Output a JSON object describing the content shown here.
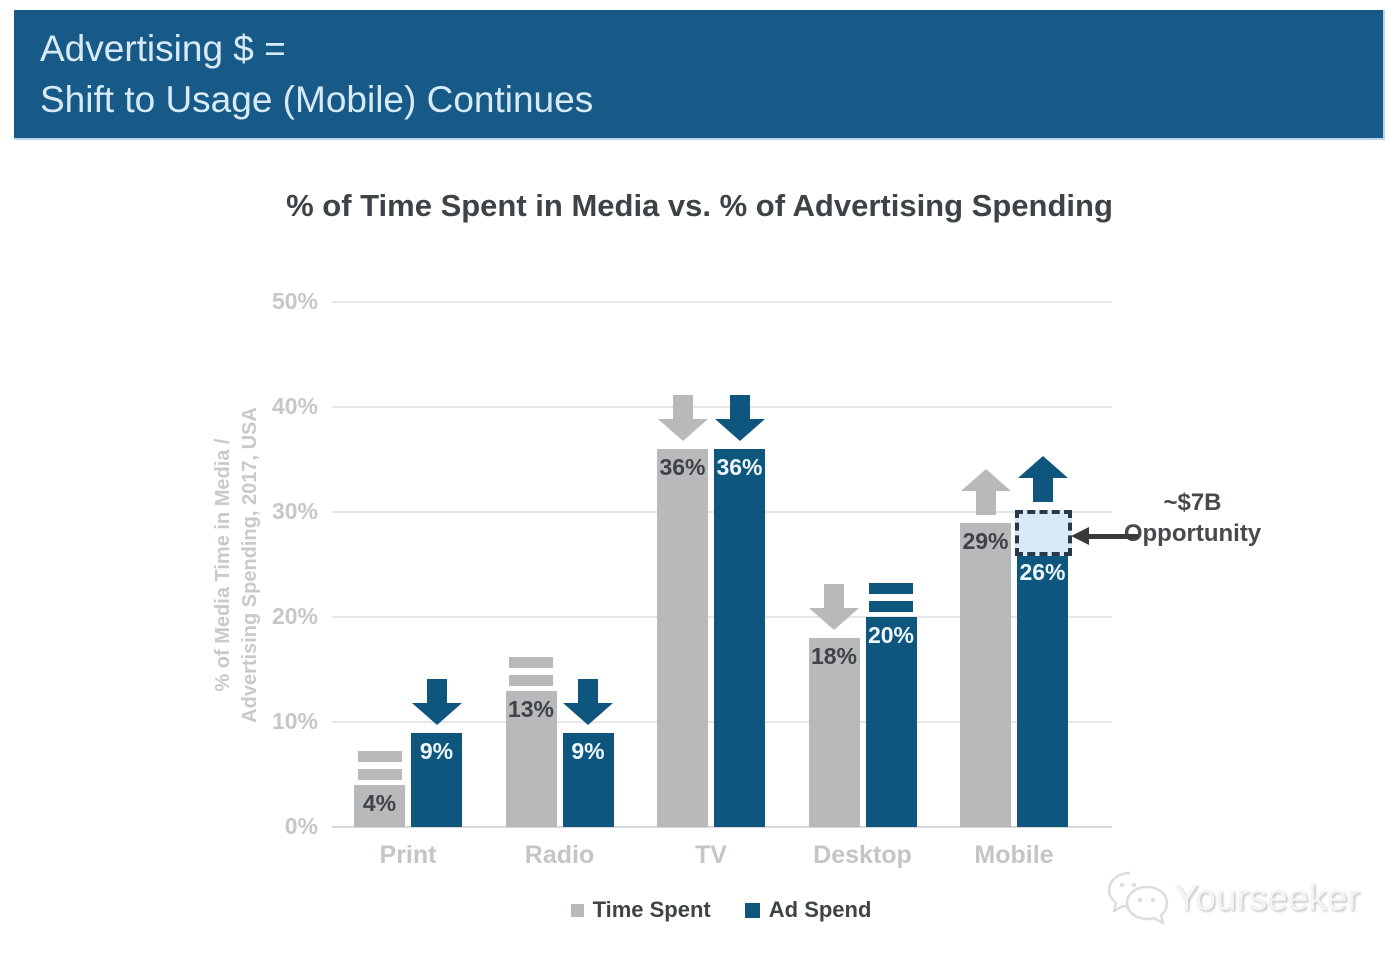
{
  "header": {
    "line1": "Advertising $ =",
    "line2": "Shift to Usage (Mobile) Continues"
  },
  "chart_data": {
    "type": "bar",
    "title": "% of Time Spent in Media vs. % of Advertising Spending",
    "ylabel_lines": [
      "% of Media Time in Media /",
      "Advertising Spending, 2017, USA"
    ],
    "categories": [
      "Print",
      "Radio",
      "TV",
      "Desktop",
      "Mobile"
    ],
    "series": [
      {
        "name": "Time Spent",
        "values": [
          4,
          13,
          36,
          18,
          29
        ],
        "value_labels": [
          "4%",
          "13%",
          "36%",
          "18%",
          "29%"
        ],
        "trends": [
          "flat",
          "flat",
          "down",
          "down",
          "up"
        ]
      },
      {
        "name": "Ad Spend",
        "values": [
          9,
          9,
          36,
          20,
          26
        ],
        "value_labels": [
          "9%",
          "9%",
          "36%",
          "20%",
          "26%"
        ],
        "trends": [
          "down",
          "down",
          "down",
          "flat",
          "up"
        ]
      }
    ],
    "yticks": [
      "0%",
      "10%",
      "20%",
      "30%",
      "40%",
      "50%"
    ],
    "ylim": [
      0,
      50
    ],
    "grid": true,
    "legend_position": "bottom",
    "annotation": {
      "lines": [
        "~$7B",
        "Opportunity"
      ],
      "target": "Mobile Ad Spend",
      "box_range_pct": [
        26,
        30
      ]
    }
  },
  "watermark": {
    "text": "Yourseeker"
  },
  "colors": {
    "header_bg": "#175a87",
    "header_text": "#d8eaf6",
    "time_spent": "#b7b9bb",
    "ad_spend": "#0f567e",
    "opportunity_box_fill": "#d9eaf6",
    "opportunity_box_border": "#26384a",
    "grid": "#e6e6e6",
    "baseline": "#d7d7d7",
    "axis_text": "#c5c7c9",
    "title_text": "#3e4347",
    "bar_label_on_gray": "#3f4247",
    "bar_label_on_blue": "#eef7fd",
    "annotation_text": "#46494d",
    "annotation_arrow": "#3a3a3a"
  }
}
